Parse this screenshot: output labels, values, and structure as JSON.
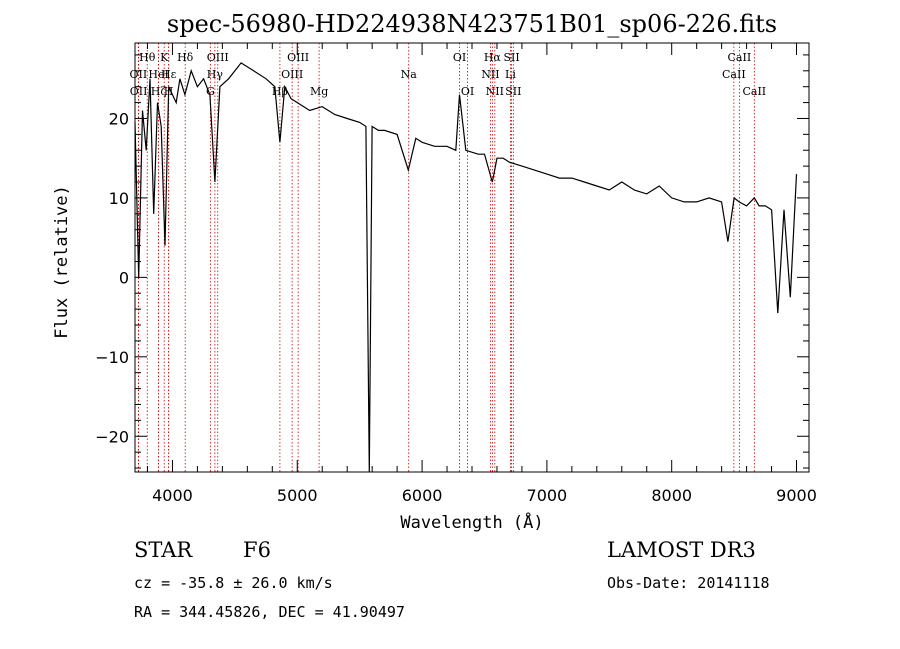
{
  "chart_data": {
    "type": "line",
    "title": "spec-56980-HD224938N423751B01_sp06-226.fits",
    "xlabel": "Wavelength (Å)",
    "ylabel": "Flux (relative)",
    "xlim": [
      3700,
      9100
    ],
    "ylim": [
      -24.5,
      29.5
    ],
    "xticks": [
      4000,
      5000,
      6000,
      7000,
      8000,
      9000
    ],
    "yticks": [
      -20,
      -10,
      0,
      10,
      20
    ],
    "series": [
      {
        "name": "flux",
        "x": [
          3700,
          3730,
          3760,
          3790,
          3820,
          3850,
          3880,
          3910,
          3940,
          3970,
          4000,
          4030,
          4060,
          4100,
          4150,
          4200,
          4250,
          4300,
          4340,
          4380,
          4450,
          4550,
          4650,
          4750,
          4820,
          4861,
          4900,
          4950,
          5000,
          5100,
          5200,
          5300,
          5400,
          5500,
          5550,
          5577,
          5600,
          5650,
          5700,
          5800,
          5890,
          5950,
          6000,
          6100,
          6200,
          6270,
          6300,
          6350,
          6450,
          6500,
          6563,
          6600,
          6650,
          6700,
          6800,
          6900,
          7000,
          7100,
          7200,
          7300,
          7400,
          7500,
          7600,
          7700,
          7800,
          7900,
          8000,
          8100,
          8200,
          8300,
          8400,
          8450,
          8500,
          8540,
          8600,
          8662,
          8700,
          8750,
          8800,
          8850,
          8900,
          8950,
          9000
        ],
        "y": [
          19.5,
          0,
          21,
          16,
          25,
          8,
          22,
          19,
          4,
          24,
          23,
          22,
          25,
          23,
          26,
          24,
          25,
          23,
          12,
          24,
          25,
          27,
          26,
          25,
          24,
          17,
          24,
          22.5,
          22,
          21,
          21.5,
          20.5,
          20,
          19.5,
          19,
          -24.5,
          19,
          18.5,
          18.5,
          18,
          13.5,
          17.5,
          17,
          16.5,
          16.5,
          16,
          23,
          16,
          15.5,
          15.5,
          12,
          15,
          15,
          14.5,
          14,
          13.5,
          13,
          12.5,
          12.5,
          12,
          11.5,
          11,
          12,
          11,
          10.5,
          11.5,
          10,
          9.5,
          9.5,
          10,
          9.5,
          4.5,
          10,
          9.5,
          9,
          10,
          9,
          9,
          8.5,
          -4.5,
          8.5,
          -2.5,
          13
        ]
      }
    ],
    "spectral_lines": [
      {
        "label": "Hθ",
        "x": 3798,
        "row": 0
      },
      {
        "label": "OII",
        "x": 3727,
        "row": 1
      },
      {
        "label": "OII",
        "x": 3729,
        "row": 2
      },
      {
        "label": "K",
        "x": 3934,
        "row": 0
      },
      {
        "label": "HeI",
        "x": 3889,
        "row": 1
      },
      {
        "label": "Hζ",
        "x": 3889,
        "row": 2
      },
      {
        "label": "Hδ",
        "x": 4102,
        "row": 0
      },
      {
        "label": "Hε",
        "x": 3970,
        "row": 1
      },
      {
        "label": "H",
        "x": 3969,
        "row": 2
      },
      {
        "label": "OIII",
        "x": 4363,
        "row": 0
      },
      {
        "label": "Hγ",
        "x": 4340,
        "row": 1
      },
      {
        "label": "G",
        "x": 4304,
        "row": 2
      },
      {
        "label": "OIII",
        "x": 5007,
        "row": 0
      },
      {
        "label": "OIII",
        "x": 4959,
        "row": 1
      },
      {
        "label": "Hβ",
        "x": 4861,
        "row": 2
      },
      {
        "label": "Mg",
        "x": 5175,
        "row": 2
      },
      {
        "label": "Na",
        "x": 5893,
        "row": 1
      },
      {
        "label": "OI",
        "x": 6300,
        "row": 0
      },
      {
        "label": "OI",
        "x": 6364,
        "row": 2
      },
      {
        "label": "Hα",
        "x": 6563,
        "row": 0
      },
      {
        "label": "NII",
        "x": 6548,
        "row": 1
      },
      {
        "label": "NII",
        "x": 6583,
        "row": 2
      },
      {
        "label": "SII",
        "x": 6717,
        "row": 0
      },
      {
        "label": "Li",
        "x": 6708,
        "row": 1
      },
      {
        "label": "SII",
        "x": 6731,
        "row": 2
      },
      {
        "label": "CaII",
        "x": 8542,
        "row": 0
      },
      {
        "label": "CaII",
        "x": 8498,
        "row": 1
      },
      {
        "label": "CaII",
        "x": 8662,
        "row": 2
      }
    ]
  },
  "info": {
    "object_class": "STAR",
    "subclass": "F6",
    "survey": "LAMOST DR3",
    "redshift": "cz = -35.8 ± 26.0 km/s",
    "obs_date": "Obs-Date: 20141118",
    "coords": "RA = 344.45826, DEC =  41.90497"
  },
  "colors": {
    "axis": "#000000",
    "spectrum": "#000000",
    "line_marker": "#cc0000"
  }
}
